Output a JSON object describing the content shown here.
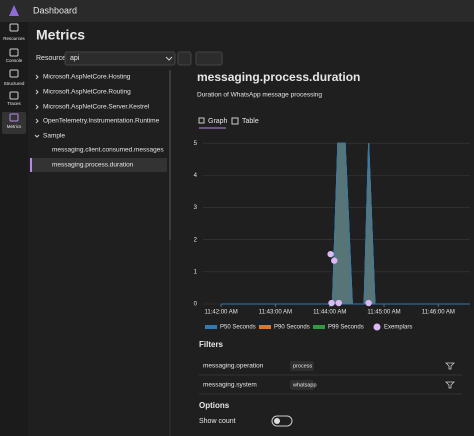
{
  "header": {
    "title": "Dashboard"
  },
  "nav": [
    {
      "label": "Resources"
    },
    {
      "label": "Console"
    },
    {
      "label": "Structured"
    },
    {
      "label": "Traces"
    },
    {
      "label": "Metrics"
    }
  ],
  "page": {
    "title": "Metrics",
    "resource_label": "Resource",
    "resource_value": "api"
  },
  "tree": [
    {
      "label": "Microsoft.AspNetCore.Hosting"
    },
    {
      "label": "Microsoft.AspNetCore.Routing"
    },
    {
      "label": "Microsoft.AspNetCore.Server.Kestrel"
    },
    {
      "label": "OpenTelemetry.Instrumentation.Runtime"
    },
    {
      "label": "Sample"
    },
    {
      "label": "messaging.client.consumed.messages"
    },
    {
      "label": "messaging.process.duration"
    }
  ],
  "metric": {
    "title": "messaging.process.duration",
    "description": "Duration of WhatsApp message processing",
    "tabs": [
      "Graph",
      "Table"
    ]
  },
  "chart_data": {
    "type": "line",
    "x": [
      "11:42:00 AM",
      "11:44:03 AM",
      "11:44:09 AM",
      "11:44:17 AM",
      "11:44:25 AM",
      "11:44:38 AM",
      "11:44:43 AM",
      "11:44:50 AM",
      "11:46:35 AM"
    ],
    "series": [
      {
        "name": "P99 Seconds",
        "color": "#2e9c3c",
        "values": [
          0,
          0,
          5,
          5,
          0,
          0,
          5,
          0,
          0
        ]
      },
      {
        "name": "P90 Seconds",
        "color": "#d9782a",
        "values": [
          0,
          0,
          5,
          5,
          0,
          0,
          5,
          0,
          0
        ]
      },
      {
        "name": "P50 Seconds",
        "color": "#2f79b5",
        "values": [
          0,
          0,
          5,
          5,
          0,
          0,
          5,
          0,
          0
        ]
      }
    ],
    "exemplars": {
      "name": "Exemplars",
      "color": "#dcb8f5",
      "x": [
        "11:44:01 AM",
        "11:44:05 AM",
        "11:44:02 AM",
        "11:44:10 AM",
        "11:44:43 AM"
      ],
      "values": [
        1.55,
        1.35,
        0.03,
        0.03,
        0.03
      ]
    },
    "xlim": [
      "11:41:40 AM",
      "11:46:35 AM"
    ],
    "xticks": [
      "11:42:00 AM",
      "11:43:00 AM",
      "11:44:00 AM",
      "11:45:00 AM",
      "11:46:00 AM"
    ],
    "ylim": [
      0,
      5.1
    ],
    "yticks": [
      0,
      1,
      2,
      3,
      4,
      5
    ],
    "grid": true
  },
  "filters": {
    "title": "Filters",
    "rows": [
      {
        "name": "messaging.operation",
        "value": "process"
      },
      {
        "name": "messaging.system",
        "value": "whatsapp"
      }
    ]
  },
  "options": {
    "title": "Options",
    "show_count": "Show count"
  }
}
